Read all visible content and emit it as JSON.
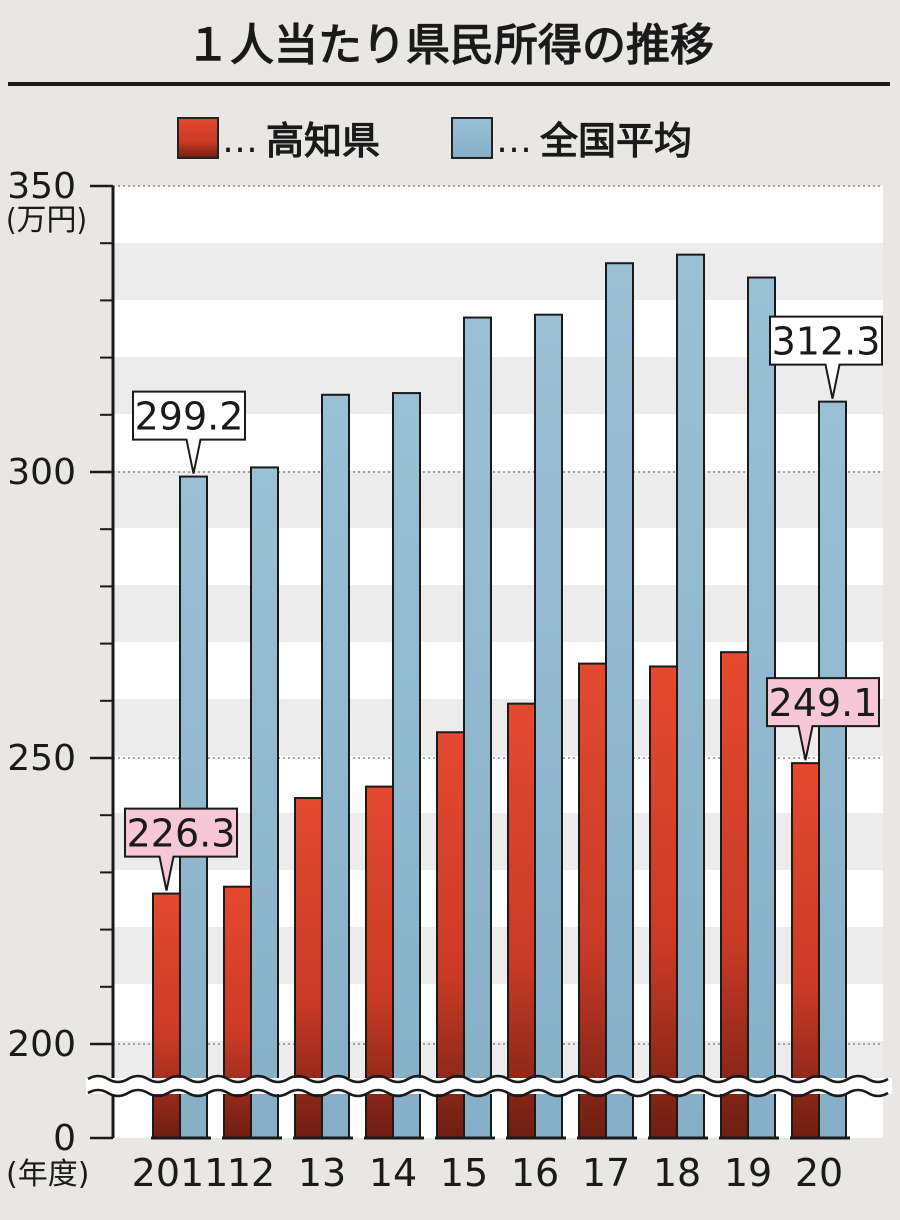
{
  "chart_data": {
    "type": "bar",
    "title": "１人当たり県民所得の推移",
    "unit": "(万円)",
    "xlabel": "(年度)",
    "categories": [
      "2011",
      "12",
      "13",
      "14",
      "15",
      "16",
      "17",
      "18",
      "19",
      "20"
    ],
    "series": [
      {
        "name": "高知県",
        "color": "#d8412c",
        "values": [
          226.3,
          227.5,
          243.0,
          245.0,
          254.5,
          259.5,
          266.5,
          266.0,
          268.5,
          249.1
        ]
      },
      {
        "name": "全国平均",
        "color": "#93b9cf",
        "values": [
          299.2,
          300.8,
          313.5,
          313.8,
          327.0,
          327.5,
          336.5,
          338.0,
          334.0,
          312.3
        ]
      }
    ],
    "yticks": [
      {
        "label": "350",
        "value": 350
      },
      {
        "label": "300",
        "value": 300
      },
      {
        "label": "250",
        "value": 250
      },
      {
        "label": "200",
        "value": 200
      },
      {
        "label": "0",
        "value": 0
      }
    ],
    "ylim": [
      0,
      350
    ],
    "axis_break": true,
    "grid": true,
    "legend_position": "top",
    "callouts": [
      {
        "label": "299.2",
        "series": 1,
        "index": 0
      },
      {
        "label": "226.3",
        "series": 0,
        "index": 0
      },
      {
        "label": "312.3",
        "series": 1,
        "index": 9
      },
      {
        "label": "249.1",
        "series": 0,
        "index": 9
      }
    ]
  }
}
